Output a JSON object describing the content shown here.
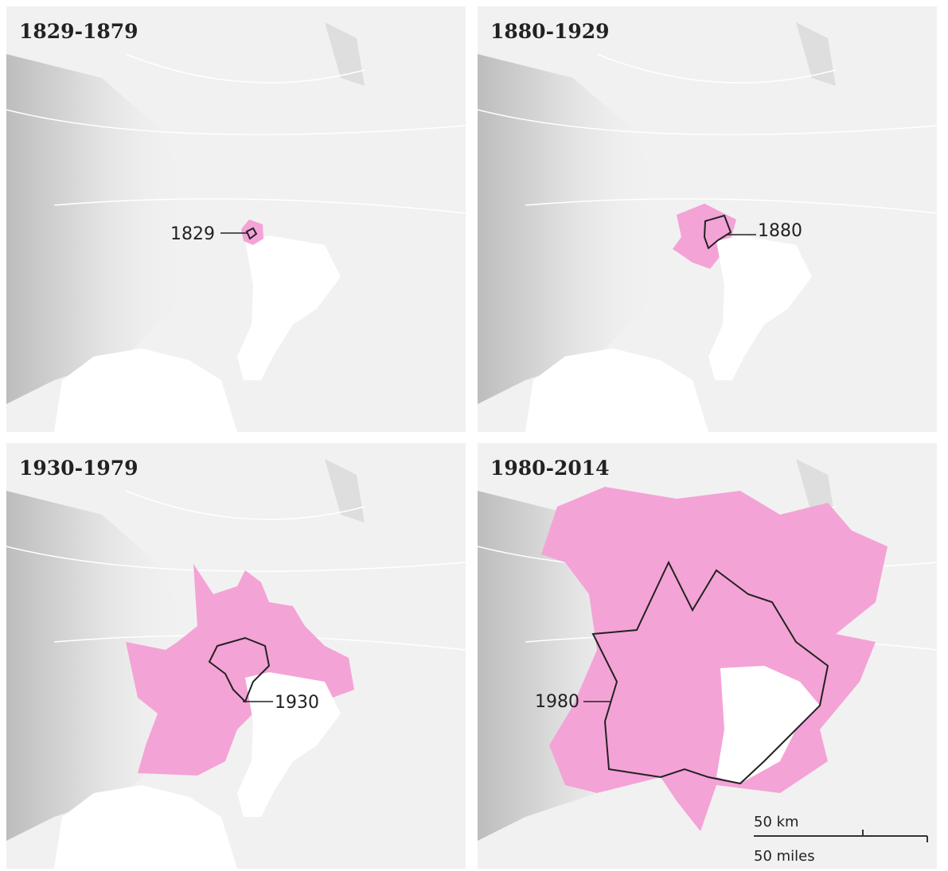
{
  "panels": [
    {
      "title": "1829-1879",
      "label": "1829"
    },
    {
      "title": "1880-1929",
      "label": "1880"
    },
    {
      "title": "1930-1979",
      "label": "1930"
    },
    {
      "title": "1980-2014",
      "label": "1980"
    }
  ],
  "scale": {
    "km": "50 km",
    "miles": "50 miles"
  }
}
